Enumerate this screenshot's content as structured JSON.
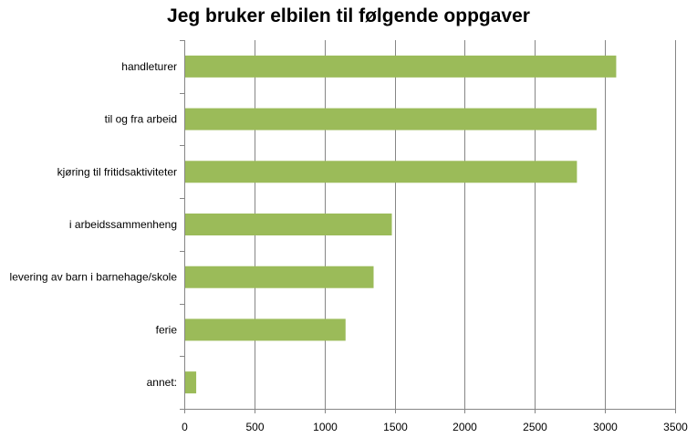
{
  "chart_data": {
    "type": "bar",
    "orientation": "horizontal",
    "title": "Jeg bruker elbilen til følgende oppgaver",
    "categories": [
      "handleturer",
      "til og fra arbeid",
      "kjøring til fritidsaktiviteter",
      "i arbeidssammenheng",
      "levering av barn i barnehage/skole",
      "ferie",
      "annet:"
    ],
    "values": [
      3080,
      2940,
      2800,
      1480,
      1350,
      1150,
      85
    ],
    "xlim": [
      0,
      3500
    ],
    "xticks": [
      0,
      500,
      1000,
      1500,
      2000,
      2500,
      3000,
      3500
    ],
    "xlabel": "",
    "ylabel": "",
    "grid": "vertical",
    "legend": "none",
    "bar_color": "#9BBB59"
  }
}
